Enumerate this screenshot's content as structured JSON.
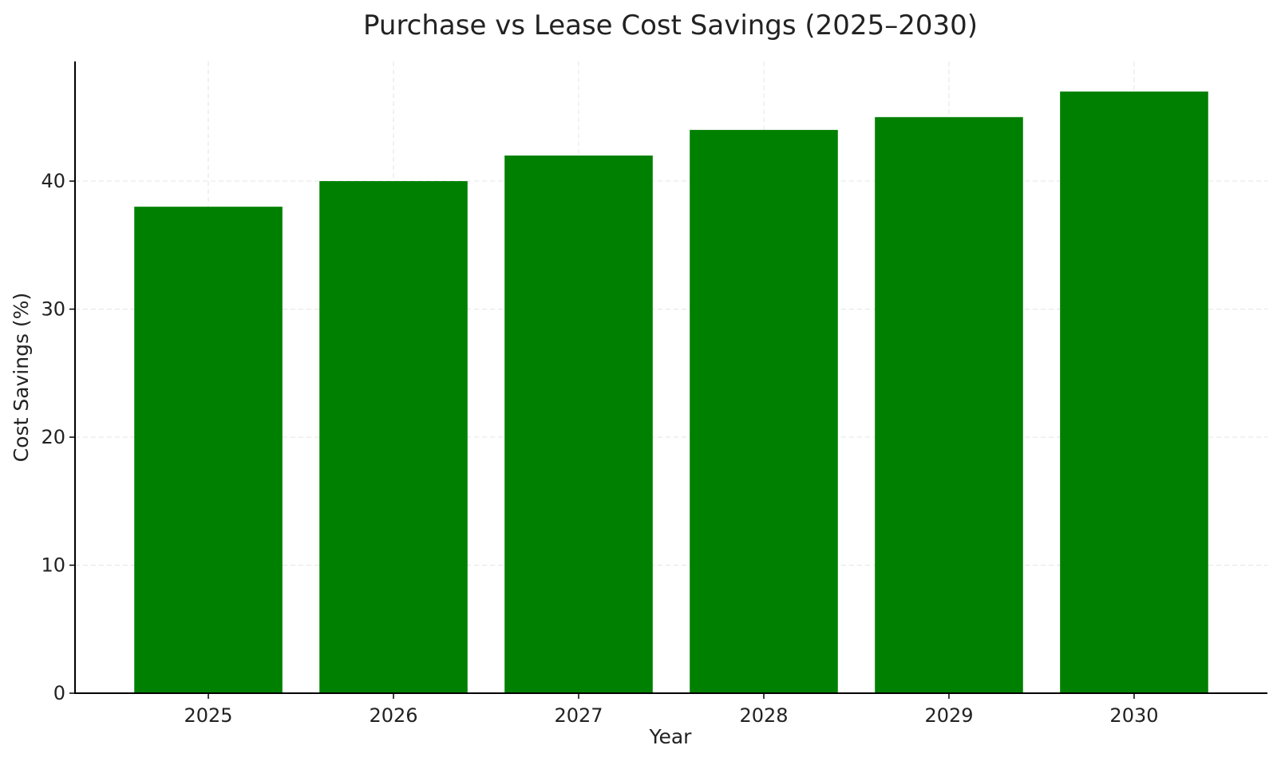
{
  "chart_data": {
    "type": "bar",
    "title": "Purchase vs Lease Cost Savings (2025–2030)",
    "xlabel": "Year",
    "ylabel": "Cost Savings (%)",
    "categories": [
      "2025",
      "2026",
      "2027",
      "2028",
      "2029",
      "2030"
    ],
    "values": [
      38,
      40,
      42,
      44,
      45,
      47
    ],
    "ylim": [
      0,
      49.35
    ],
    "yticks": [
      0,
      10,
      20,
      30,
      40
    ],
    "ytick_labels": [
      "0",
      "10",
      "20",
      "30",
      "40"
    ],
    "grid": true,
    "legend": "none",
    "bar_color": "#008000"
  }
}
